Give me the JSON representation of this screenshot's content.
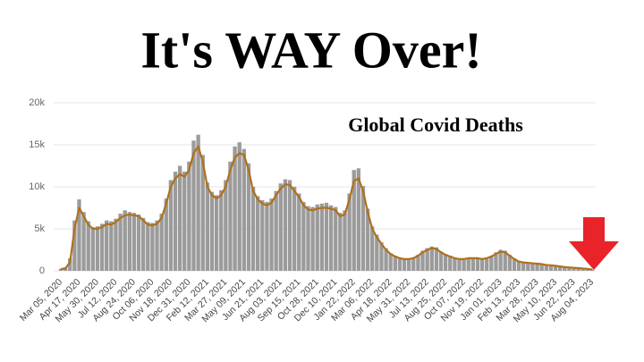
{
  "chart_data": {
    "type": "bar",
    "title": "It's WAY Over!",
    "subtitle": "Global Covid Deaths",
    "categories": [
      "Mar 05, 2020",
      null,
      null,
      null,
      "Apr 17, 2020",
      null,
      null,
      null,
      "May 30, 2020",
      null,
      null,
      null,
      "Jul 12, 2020",
      null,
      null,
      null,
      "Aug 24, 2020",
      null,
      null,
      null,
      "Oct 06, 2020",
      null,
      null,
      null,
      "Nov 18, 2020",
      null,
      null,
      null,
      "Dec 31, 2020",
      null,
      null,
      null,
      "Feb 12, 2021",
      null,
      null,
      null,
      "Mar 27, 2021",
      null,
      null,
      null,
      "May 09, 2021",
      null,
      null,
      null,
      "Jun 21, 2021",
      null,
      null,
      null,
      "Aug 03, 2021",
      null,
      null,
      null,
      "Sep 15, 2021",
      null,
      null,
      null,
      "Oct 28, 2021",
      null,
      null,
      null,
      "Dec 10, 2021",
      null,
      null,
      null,
      "Jan 22, 2022",
      null,
      null,
      null,
      "Mar 06, 2022",
      null,
      null,
      null,
      "Apr 18, 2022",
      null,
      null,
      null,
      "May 31, 2022",
      null,
      null,
      null,
      "Jul 13, 2022",
      null,
      null,
      null,
      "Aug 25, 2022",
      null,
      null,
      null,
      "Oct 07, 2022",
      null,
      null,
      null,
      "Nov 19, 2022",
      null,
      null,
      null,
      "Jan 01, 2023",
      null,
      null,
      null,
      "Feb 13, 2023",
      null,
      null,
      null,
      "Mar 28, 2023",
      null,
      null,
      null,
      "May 10, 2023",
      null,
      null,
      null,
      "Jun 22, 2023",
      null,
      null,
      null,
      "Aug 04, 2023"
    ],
    "series": [
      {
        "color": "#9b9b9b",
        "values": [
          250,
          400,
          1500,
          6000,
          8500,
          7000,
          5900,
          5200,
          5300,
          5600,
          6000,
          5900,
          6200,
          6800,
          7200,
          7000,
          6900,
          6700,
          6300,
          5800,
          5700,
          6000,
          6800,
          8600,
          10800,
          11800,
          12500,
          11800,
          13000,
          15500,
          16200,
          13800,
          10500,
          9400,
          9000,
          9600,
          10800,
          13000,
          14800,
          15300,
          14500,
          12800,
          10000,
          8900,
          8400,
          8200,
          8600,
          9500,
          10400,
          10900,
          10800,
          10000,
          9200,
          8200,
          7700,
          7600,
          7900,
          8000,
          8100,
          7800,
          7600,
          6900,
          7200,
          9200,
          12000,
          12200,
          10100,
          7400,
          5300,
          4300,
          3400,
          2700,
          2100,
          1800,
          1600,
          1500,
          1500,
          1600,
          1900,
          2400,
          2700,
          2900,
          2800,
          2300,
          2000,
          1800,
          1600,
          1500,
          1500,
          1600,
          1600,
          1600,
          1500,
          1600,
          1800,
          2200,
          2500,
          2400,
          1900,
          1500,
          1200,
          1050,
          1000,
          950,
          900,
          850,
          750,
          700,
          650,
          560,
          480,
          430,
          390,
          350,
          290,
          250,
          170
        ]
      },
      {
        "type": "line",
        "color": "#b0701c",
        "values": [
          200,
          300,
          1000,
          5000,
          7500,
          6500,
          5500,
          5000,
          5000,
          5200,
          5600,
          5500,
          5800,
          6300,
          6600,
          6700,
          6600,
          6500,
          6000,
          5500,
          5400,
          5600,
          6300,
          8000,
          10000,
          11000,
          11500,
          11200,
          12000,
          14000,
          14800,
          13000,
          10000,
          9000,
          8600,
          9000,
          10000,
          12000,
          13500,
          14000,
          13800,
          12000,
          9500,
          8500,
          8000,
          7800,
          8100,
          9000,
          9800,
          10300,
          10200,
          9500,
          8800,
          7800,
          7300,
          7200,
          7400,
          7500,
          7500,
          7400,
          7200,
          6500,
          6700,
          8500,
          10700,
          11000,
          9500,
          7000,
          5000,
          4000,
          3200,
          2500,
          2000,
          1700,
          1500,
          1400,
          1400,
          1500,
          1800,
          2200,
          2500,
          2700,
          2600,
          2200,
          1900,
          1700,
          1500,
          1400,
          1400,
          1500,
          1500,
          1500,
          1400,
          1500,
          1700,
          2000,
          2300,
          2200,
          1800,
          1400,
          1100,
          1000,
          950,
          900,
          850,
          800,
          700,
          650,
          600,
          520,
          450,
          400,
          360,
          320,
          270,
          230,
          150
        ]
      }
    ],
    "ylim": [
      0,
      20000
    ],
    "yticks": [
      0,
      {
        "value": 5000,
        "label": "5k"
      },
      {
        "value": 10000,
        "label": "10k"
      },
      {
        "value": 15000,
        "label": "15k"
      },
      {
        "value": 20000,
        "label": "20k"
      }
    ],
    "grid": true
  }
}
